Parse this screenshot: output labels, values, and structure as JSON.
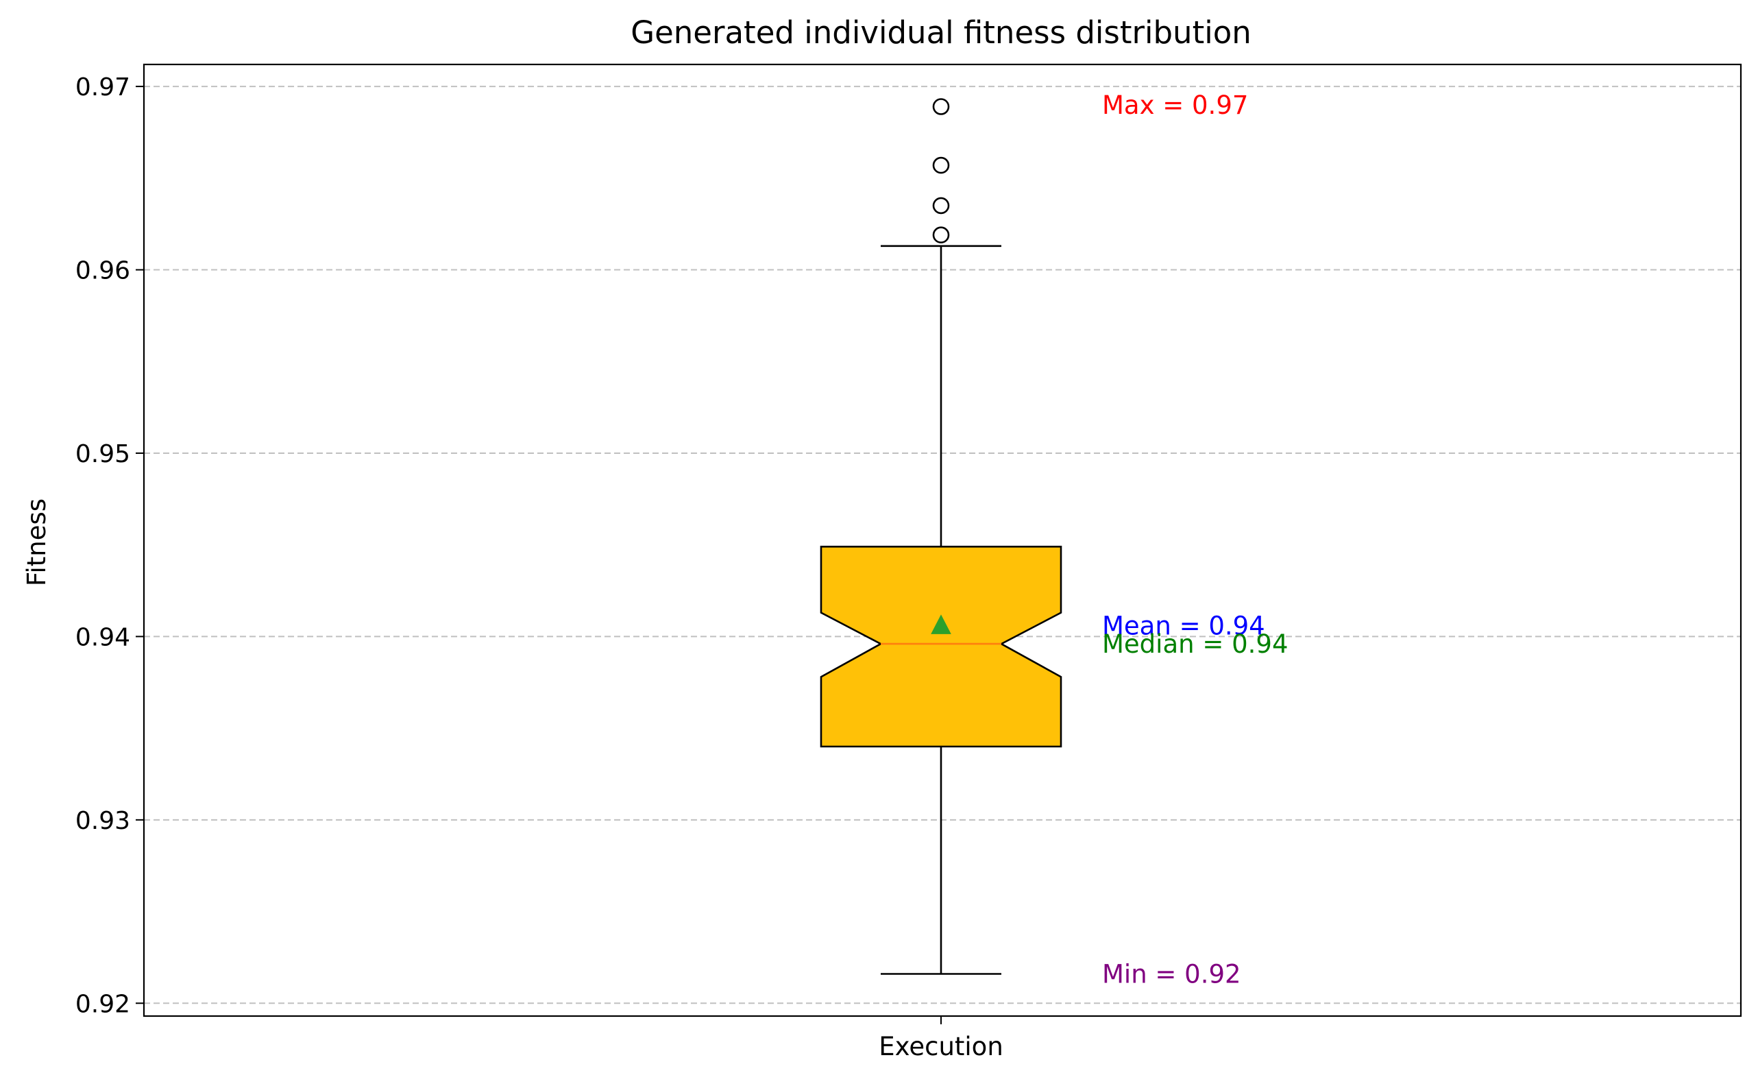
{
  "chart_data": {
    "type": "boxplot",
    "title": "Generated individual fitness distribution",
    "xlabel": "",
    "ylabel": "Fitness",
    "categories": [
      "Execution"
    ],
    "ylim": [
      0.9193,
      0.9712
    ],
    "yticks": [
      0.92,
      0.93,
      0.94,
      0.95,
      0.96,
      0.97
    ],
    "ytick_labels": [
      "0.92",
      "0.93",
      "0.94",
      "0.95",
      "0.96",
      "0.97"
    ],
    "grid": {
      "y": true,
      "x": false,
      "style": "dashed"
    },
    "box": {
      "whisker_low": 0.9216,
      "q1": 0.934,
      "median": 0.9396,
      "notch_low": 0.9378,
      "notch_high": 0.9413,
      "q3": 0.9449,
      "whisker_high": 0.9613,
      "mean": 0.9406,
      "outliers": [
        0.9619,
        0.9635,
        0.9657,
        0.9689
      ]
    },
    "annotations": [
      {
        "name": "max",
        "text": "Max = 0.97",
        "y": 0.969,
        "color": "#ff0000"
      },
      {
        "name": "mean",
        "text": "Mean = 0.94",
        "y": 0.9406,
        "color": "#0000ff"
      },
      {
        "name": "median",
        "text": "Median = 0.94",
        "y": 0.9396,
        "color": "#008000"
      },
      {
        "name": "min",
        "text": "Min = 0.92",
        "y": 0.9216,
        "color": "#800080"
      }
    ],
    "colors": {
      "box_fill": "#ffc107",
      "median_line": "#ff7f0e",
      "mean_marker": "#2ca02c",
      "grid": "#c0c0c0"
    }
  }
}
